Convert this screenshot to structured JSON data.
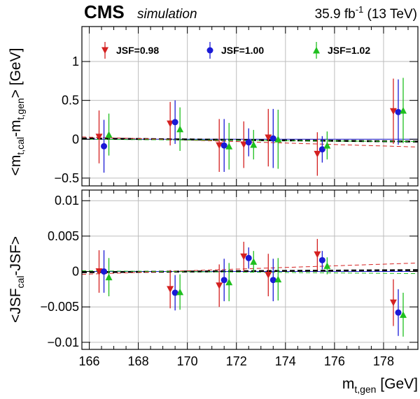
{
  "header": {
    "experiment": "CMS",
    "tag": "simulation",
    "lumi_main": "35.9 fb",
    "lumi_exp": "-1",
    "lumi_tail": " (13 TeV)"
  },
  "legend": [
    {
      "label": "JSF=0.98",
      "color": "#d42020",
      "marker": "triangle-down"
    },
    {
      "label": "JSF=1.00",
      "color": "#1a1ad6",
      "marker": "circle"
    },
    {
      "label": "JSF=1.02",
      "color": "#1fbf1f",
      "marker": "triangle-up"
    }
  ],
  "y_title_top": {
    "base": "<m",
    "sub1": "t,cal",
    "mid": "-m",
    "sub2": "t,gen",
    "tail": "> [GeV]"
  },
  "y_title_bottom": {
    "base": "<JSF",
    "sub1": "cal",
    "tail": "-JSF>"
  },
  "x_title": {
    "base": "m",
    "sub": "t,gen",
    "tail": " [GeV]"
  },
  "chart_data": [
    {
      "type": "scatter",
      "panel": "top",
      "xlim": [
        165.7,
        179.4
      ],
      "ylim": [
        -0.6,
        1.45
      ],
      "xticks": [
        166,
        168,
        170,
        172,
        174,
        176,
        178
      ],
      "xtick_labels": [
        "166",
        "168",
        "170",
        "172",
        "174",
        "176",
        "178"
      ],
      "yticks": [
        -0.5,
        0,
        0.5,
        1
      ],
      "ytick_labels": [
        "−0.5",
        "0",
        "0.5",
        "1"
      ],
      "grid": true,
      "legend_position": "top",
      "series": [
        {
          "name": "JSF=0.98",
          "color": "#d42020",
          "marker": "triangle-down",
          "points": [
            [
              166.4,
              0.03,
              0.34
            ],
            [
              169.3,
              0.2,
              0.28
            ],
            [
              171.3,
              -0.08,
              0.34
            ],
            [
              172.3,
              -0.07,
              0.3
            ],
            [
              173.3,
              0.02,
              0.37
            ],
            [
              175.3,
              -0.19,
              0.28
            ],
            [
              178.4,
              0.36,
              0.42
            ]
          ]
        },
        {
          "name": "JSF=1.00",
          "color": "#1a1ad6",
          "marker": "circle",
          "points": [
            [
              166.6,
              -0.09,
              0.34
            ],
            [
              169.5,
              0.22,
              0.28
            ],
            [
              171.5,
              -0.08,
              0.34
            ],
            [
              172.5,
              -0.04,
              0.18
            ],
            [
              173.5,
              0.01,
              0.38
            ],
            [
              175.5,
              -0.13,
              0.17
            ],
            [
              178.6,
              0.35,
              0.42
            ]
          ]
        },
        {
          "name": "JSF=1.02",
          "color": "#1fbf1f",
          "marker": "triangle-up",
          "points": [
            [
              166.8,
              0.06,
              0.27
            ],
            [
              169.7,
              0.13,
              0.28
            ],
            [
              171.7,
              -0.09,
              0.3
            ],
            [
              172.7,
              -0.07,
              0.19
            ],
            [
              173.7,
              0.0,
              0.38
            ],
            [
              175.7,
              -0.08,
              0.18
            ],
            [
              178.8,
              0.37,
              0.42
            ]
          ]
        }
      ],
      "fits": [
        {
          "color": "#000000",
          "dashed": true,
          "width": 2.6,
          "y": [
            0.01,
            -0.03
          ]
        },
        {
          "color": "#d42020",
          "dashed": true,
          "width": 1.0,
          "y": [
            0.03,
            -0.1
          ]
        },
        {
          "color": "#1fbf1f",
          "dashed": true,
          "width": 1.0,
          "y": [
            0.0,
            -0.03
          ]
        }
      ]
    },
    {
      "type": "scatter",
      "panel": "bottom",
      "xlim": [
        165.7,
        179.4
      ],
      "ylim": [
        -0.011,
        0.0115
      ],
      "xticks": [
        166,
        168,
        170,
        172,
        174,
        176,
        178
      ],
      "xtick_labels": [
        "166",
        "168",
        "170",
        "172",
        "174",
        "176",
        "178"
      ],
      "yticks": [
        -0.01,
        -0.005,
        0,
        0.005,
        0.01
      ],
      "ytick_labels": [
        "−0.01",
        "−0.005",
        "0",
        "0.005",
        "0.01"
      ],
      "grid": true,
      "series": [
        {
          "name": "JSF=0.98",
          "color": "#d42020",
          "marker": "triangle-down",
          "points": [
            [
              166.4,
              0.0,
              0.003
            ],
            [
              169.3,
              -0.0025,
              0.0027
            ],
            [
              171.3,
              -0.002,
              0.003
            ],
            [
              172.3,
              0.0021,
              0.0021
            ],
            [
              173.3,
              -0.0005,
              0.003
            ],
            [
              175.3,
              0.0024,
              0.0022
            ],
            [
              178.4,
              -0.0044,
              0.0033
            ]
          ]
        },
        {
          "name": "JSF=1.00",
          "color": "#1a1ad6",
          "marker": "circle",
          "points": [
            [
              166.6,
              0.0,
              0.003
            ],
            [
              169.5,
              -0.003,
              0.0025
            ],
            [
              171.5,
              -0.0012,
              0.003
            ],
            [
              172.5,
              0.0019,
              0.0015
            ],
            [
              173.5,
              -0.0012,
              0.003
            ],
            [
              175.5,
              0.0016,
              0.0013
            ],
            [
              178.6,
              -0.0058,
              0.0033
            ]
          ]
        },
        {
          "name": "JSF=1.02",
          "color": "#1fbf1f",
          "marker": "triangle-up",
          "points": [
            [
              166.8,
              -0.0008,
              0.0027
            ],
            [
              169.7,
              -0.0029,
              0.0025
            ],
            [
              171.7,
              -0.0015,
              0.0027
            ],
            [
              172.7,
              0.0014,
              0.0015
            ],
            [
              173.7,
              -0.0011,
              0.003
            ],
            [
              175.7,
              0.0008,
              0.0012
            ],
            [
              178.8,
              -0.0061,
              0.0031
            ]
          ]
        }
      ],
      "fits": [
        {
          "color": "#000000",
          "dashed": true,
          "width": 2.6,
          "y": [
            -0.0001,
            0.0002
          ]
        },
        {
          "color": "#d42020",
          "dashed": true,
          "width": 1.0,
          "y": [
            -0.0004,
            0.0012
          ]
        },
        {
          "color": "#1fbf1f",
          "dashed": true,
          "width": 1.0,
          "y": [
            0.0001,
            -0.0003
          ]
        }
      ]
    }
  ]
}
